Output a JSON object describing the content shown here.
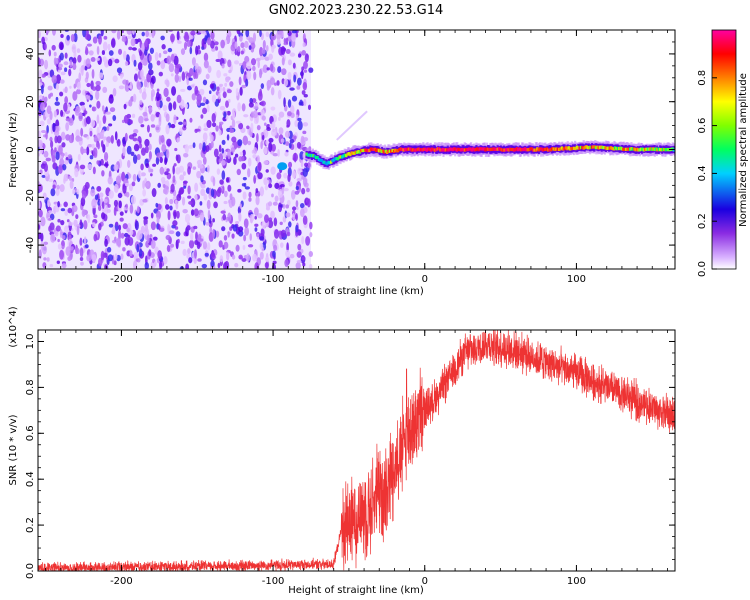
{
  "title": "GN02.2023.230.22.53.G14",
  "chart_data": [
    {
      "type": "heatmap",
      "xlabel": "Height of straight line (km)",
      "ylabel": "Frequency (Hz)",
      "xlim": [
        -255,
        165
      ],
      "ylim": [
        -50,
        50
      ],
      "xticks": [
        -200,
        -100,
        0,
        100
      ],
      "yticks": [
        -40,
        -20,
        0,
        20,
        40
      ],
      "grid": false,
      "colorbar": {
        "label": "Normalized spectral amplitude",
        "range": [
          0.0,
          1.0
        ],
        "ticks": [
          "0.0",
          "0.2",
          "0.4",
          "0.6",
          "0.8"
        ],
        "stops": [
          "#ffffff",
          "#8a2be2",
          "#4b0082",
          "#0000ff",
          "#00ffff",
          "#00ff00",
          "#ffff00",
          "#ff8000",
          "#ff0000",
          "#ff00a0"
        ]
      },
      "noise_region_x": [
        -255,
        -75
      ],
      "noise_amplitude": 0.3,
      "signal_track": [
        {
          "x": -78,
          "f": -2,
          "amp": 0.55
        },
        {
          "x": -72,
          "f": -3,
          "amp": 0.5
        },
        {
          "x": -65,
          "f": -6,
          "amp": 0.5
        },
        {
          "x": -55,
          "f": -3,
          "amp": 0.6
        },
        {
          "x": -45,
          "f": -1,
          "amp": 0.7
        },
        {
          "x": -35,
          "f": 0,
          "amp": 0.85
        },
        {
          "x": -25,
          "f": -1,
          "amp": 0.75
        },
        {
          "x": -15,
          "f": 0,
          "amp": 0.9
        },
        {
          "x": 0,
          "f": 0,
          "amp": 0.95
        },
        {
          "x": 40,
          "f": 0,
          "amp": 0.95
        },
        {
          "x": 80,
          "f": 0,
          "amp": 0.85
        },
        {
          "x": 110,
          "f": 1,
          "amp": 0.75
        },
        {
          "x": 140,
          "f": 0,
          "amp": 0.7
        },
        {
          "x": 165,
          "f": 0,
          "amp": 0.6
        }
      ],
      "signal_bright_x": [
        -30,
        100
      ]
    },
    {
      "type": "line",
      "xlabel": "Height of straight line (km)",
      "ylabel": "SNR (10 * v/v)",
      "y_multiplier": "(x10^4)",
      "xlim": [
        -255,
        165
      ],
      "ylim": [
        0,
        1.05
      ],
      "xticks": [
        -200,
        -100,
        0,
        100
      ],
      "yticks": [
        "0.0",
        "0.2",
        "0.4",
        "0.6",
        "0.8",
        "1.0"
      ],
      "grid": false,
      "color": "#ee3333",
      "trend": [
        {
          "x": -255,
          "y": 0.012
        },
        {
          "x": -150,
          "y": 0.02
        },
        {
          "x": -60,
          "y": 0.03
        },
        {
          "x": -55,
          "y": 0.18
        },
        {
          "x": -40,
          "y": 0.25
        },
        {
          "x": -25,
          "y": 0.38
        },
        {
          "x": -10,
          "y": 0.62
        },
        {
          "x": 10,
          "y": 0.78
        },
        {
          "x": 25,
          "y": 0.94
        },
        {
          "x": 40,
          "y": 0.99
        },
        {
          "x": 60,
          "y": 0.96
        },
        {
          "x": 100,
          "y": 0.86
        },
        {
          "x": 140,
          "y": 0.74
        },
        {
          "x": 165,
          "y": 0.67
        }
      ],
      "spikes": [
        {
          "x": -12,
          "y": 0.88
        },
        {
          "x": -50,
          "y": 0.28
        },
        {
          "x": 30,
          "y": 1.03
        }
      ]
    }
  ]
}
